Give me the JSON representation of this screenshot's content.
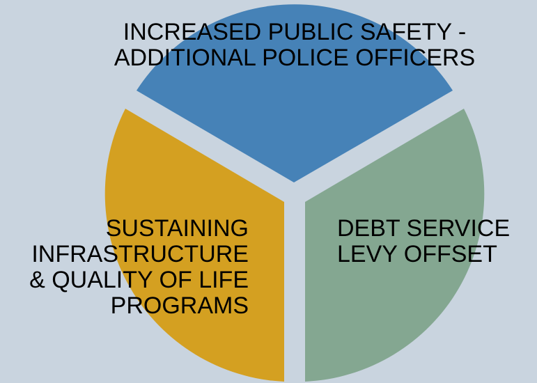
{
  "diagram": {
    "segments": [
      {
        "id": "top",
        "color": "#4682b7",
        "lines": [
          "INCREASED PUBLIC SAFETY -",
          "ADDITIONAL POLICE OFFICERS"
        ]
      },
      {
        "id": "right",
        "color": "#84a791",
        "lines": [
          "DEBT SERVICE",
          "LEVY OFFSET"
        ]
      },
      {
        "id": "left",
        "color": "#d4a021",
        "lines": [
          "SUSTAINING",
          "INFRASTRUCTURE",
          "& QUALITY OF LIFE",
          "PROGRAMS"
        ]
      }
    ],
    "background_color": "#c9d4df"
  }
}
